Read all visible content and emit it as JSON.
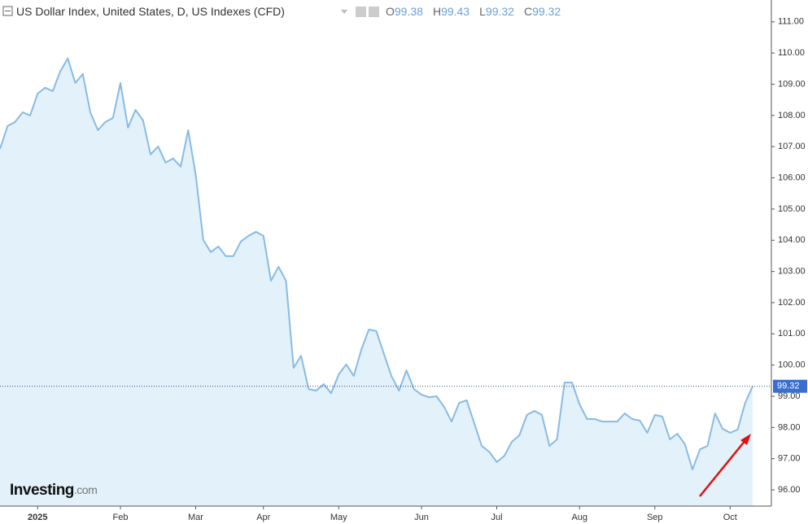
{
  "chart_data": {
    "type": "area",
    "title": "US Dollar Index, United States, D, US Indexes (CFD)",
    "ohlc": [
      {
        "label": "O",
        "value": 99.38
      },
      {
        "label": "H",
        "value": 99.43
      },
      {
        "label": "L",
        "value": 99.32
      },
      {
        "label": "C",
        "value": 99.32
      }
    ],
    "brand": {
      "name": "Investing",
      "suffix": ".com"
    },
    "categories": [
      null,
      null,
      null,
      null,
      null,
      "2025",
      null,
      null,
      null,
      null,
      null,
      null,
      null,
      null,
      null,
      null,
      "Feb",
      null,
      null,
      null,
      null,
      null,
      null,
      null,
      null,
      null,
      "Mar",
      null,
      null,
      null,
      null,
      null,
      null,
      null,
      null,
      "Apr",
      null,
      null,
      null,
      null,
      null,
      null,
      null,
      null,
      null,
      "May",
      null,
      null,
      null,
      null,
      null,
      null,
      null,
      null,
      null,
      null,
      "Jun",
      null,
      null,
      null,
      null,
      null,
      null,
      null,
      null,
      null,
      "Jul",
      null,
      null,
      null,
      null,
      null,
      null,
      null,
      null,
      null,
      null,
      "Aug",
      null,
      null,
      null,
      null,
      null,
      null,
      null,
      null,
      null,
      "Sep",
      null,
      null,
      null,
      null,
      null,
      null,
      null,
      null,
      null,
      "Oct",
      null,
      null,
      null
    ],
    "values": [
      106.93,
      107.66,
      107.79,
      108.1,
      108.0,
      108.7,
      108.89,
      108.78,
      109.41,
      109.83,
      109.04,
      109.33,
      108.1,
      107.53,
      107.79,
      107.92,
      109.04,
      107.61,
      108.18,
      107.84,
      106.75,
      107.01,
      106.49,
      106.62,
      106.36,
      107.53,
      106.1,
      104.01,
      103.62,
      103.8,
      103.49,
      103.49,
      103.96,
      104.14,
      104.27,
      104.14,
      102.7,
      103.15,
      102.7,
      99.91,
      100.3,
      99.23,
      99.18,
      99.39,
      99.1,
      99.7,
      100.02,
      99.65,
      100.49,
      101.14,
      101.09,
      100.36,
      99.65,
      99.18,
      99.83,
      99.23,
      99.05,
      98.97,
      99.0,
      98.66,
      98.19,
      98.79,
      98.87,
      98.14,
      97.41,
      97.22,
      96.89,
      97.09,
      97.54,
      97.75,
      98.4,
      98.53,
      98.4,
      97.41,
      97.62,
      99.44,
      99.44,
      98.74,
      98.27,
      98.27,
      98.19,
      98.19,
      98.19,
      98.45,
      98.27,
      98.22,
      97.83,
      98.4,
      98.35,
      97.62,
      97.8,
      97.46,
      96.65,
      97.3,
      97.41,
      98.45,
      97.96,
      97.83,
      97.93,
      98.79,
      99.32
    ],
    "color": "#88bbe4",
    "fill": "#e3f1fa",
    "price_line": 99.32,
    "ylim": [
      95.48,
      111.7
    ],
    "yticks": [
      {
        "value": 96,
        "label": "96.00"
      },
      {
        "value": 97,
        "label": "97.00"
      },
      {
        "value": 98,
        "label": "98.00"
      },
      {
        "value": 99,
        "label": "99.00"
      },
      {
        "value": 100,
        "label": "100.00"
      },
      {
        "value": 101,
        "label": "101.00"
      },
      {
        "value": 102,
        "label": "102.00"
      },
      {
        "value": 103,
        "label": "103.00"
      },
      {
        "value": 104,
        "label": "104.00"
      },
      {
        "value": 105,
        "label": "105.00"
      },
      {
        "value": 106,
        "label": "106.00"
      },
      {
        "value": 107,
        "label": "107.00"
      },
      {
        "value": 108,
        "label": "108.00"
      },
      {
        "value": 109,
        "label": "109.00"
      },
      {
        "value": 110,
        "label": "110.00"
      },
      {
        "value": 111,
        "label": "111.00"
      }
    ],
    "grid": false
  }
}
